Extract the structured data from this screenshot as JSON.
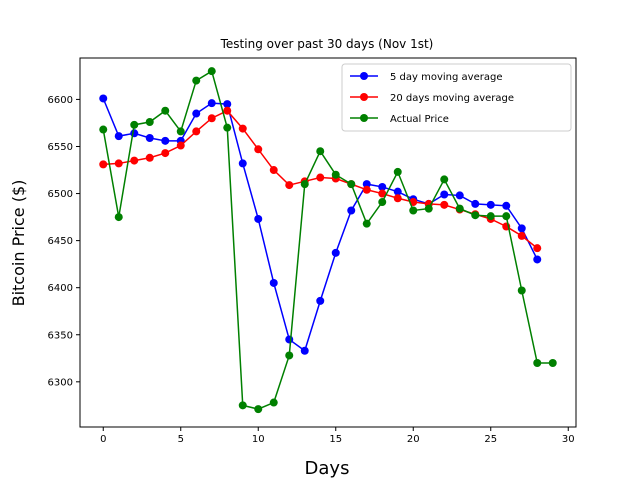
{
  "chart_data": {
    "type": "line",
    "title": "Testing over past 30 days (Nov 1st)",
    "xlabel": "Days",
    "ylabel": "Bitcoin Price ($)",
    "xlim": [
      -1.5,
      30.5
    ],
    "ylim": [
      6252,
      6644
    ],
    "xticks": [
      0,
      5,
      10,
      15,
      20,
      25,
      30
    ],
    "yticks": [
      6300,
      6350,
      6400,
      6450,
      6500,
      6550,
      6600
    ],
    "grid": false,
    "legend_position": "top-right",
    "series": [
      {
        "name": "5 day moving average",
        "color": "#0000ff",
        "x": [
          0,
          1,
          2,
          3,
          4,
          5,
          6,
          7,
          8,
          9,
          10,
          11,
          12,
          13,
          14,
          15,
          16,
          17,
          18,
          19,
          20,
          21,
          22,
          23,
          24,
          25,
          26,
          27,
          28
        ],
        "values": [
          6601,
          6561,
          6564,
          6559,
          6556,
          6556,
          6585,
          6596,
          6595,
          6532,
          6473,
          6405,
          6345,
          6333,
          6386,
          6437,
          6482,
          6510,
          6507,
          6502,
          6494,
          6489,
          6499,
          6498,
          6489,
          6488,
          6487,
          6463,
          6430
        ]
      },
      {
        "name": "20 days moving average",
        "color": "#ff0000",
        "x": [
          0,
          1,
          2,
          3,
          4,
          5,
          6,
          7,
          8,
          9,
          10,
          11,
          12,
          13,
          14,
          15,
          16,
          17,
          18,
          19,
          20,
          21,
          22,
          23,
          24,
          25,
          26,
          27,
          28
        ],
        "values": [
          6531,
          6532,
          6535,
          6538,
          6543,
          6551,
          6566,
          6580,
          6588,
          6569,
          6547,
          6525,
          6509,
          6513,
          6517,
          6516,
          6510,
          6504,
          6500,
          6495,
          6491,
          6489,
          6488,
          6483,
          6478,
          6473,
          6465,
          6455,
          6442
        ]
      },
      {
        "name": "Actual Price",
        "color": "#008000",
        "x": [
          0,
          1,
          2,
          3,
          4,
          5,
          6,
          7,
          8,
          9,
          10,
          11,
          12,
          13,
          14,
          15,
          16,
          17,
          18,
          19,
          20,
          21,
          22,
          23,
          24,
          25,
          26,
          27,
          28,
          29
        ],
        "values": [
          6568,
          6475,
          6573,
          6576,
          6588,
          6566,
          6620,
          6630,
          6570,
          6275,
          6271,
          6278,
          6328,
          6510,
          6545,
          6520,
          6510,
          6468,
          6491,
          6523,
          6482,
          6484,
          6515,
          6484,
          6477,
          6476,
          6476,
          6397,
          6320,
          6320
        ]
      }
    ]
  }
}
